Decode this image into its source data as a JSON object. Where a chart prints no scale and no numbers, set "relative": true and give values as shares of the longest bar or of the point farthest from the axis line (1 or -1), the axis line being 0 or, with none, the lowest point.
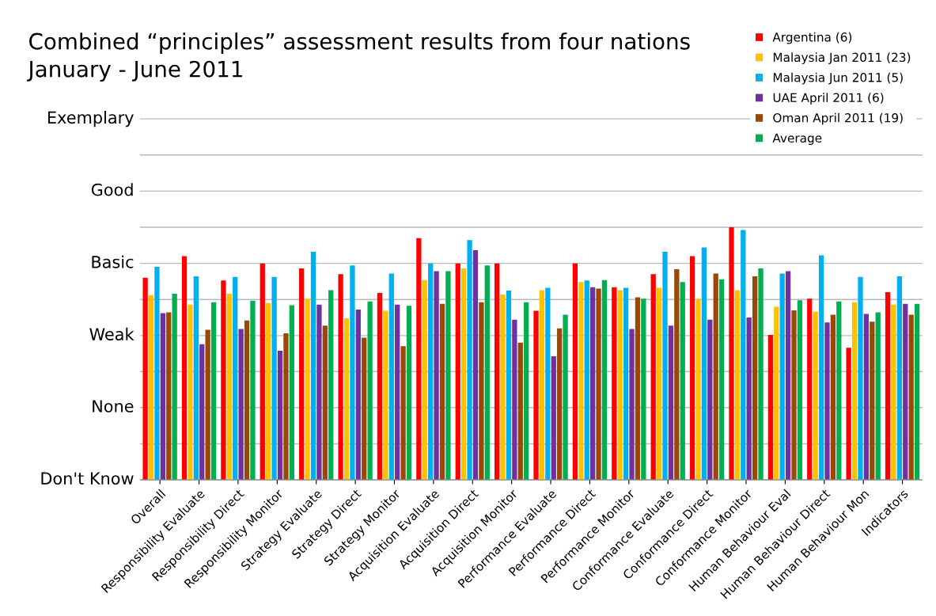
{
  "chart_data": {
    "type": "bar",
    "title": "Combined “principles” assessment results from four nations",
    "subtitle": "January - June 2011",
    "relative": true,
    "categories": [
      "Overall",
      "Responsibility Evaluate",
      "Responsibility Direct",
      "Responsibility Monitor",
      "Strategy Evaluate",
      "Strategy Direct",
      "Strategy Monitor",
      "Acquisition Evaluate",
      "Acquisition Direct",
      "Acquisition Monitor",
      "Performance Evaluate",
      "Performance Direct",
      "Performance Monitor",
      "Conformance Evaluate",
      "Conformance Direct",
      "Conformance Monitor",
      "Human Behaviour Eval",
      "Human Behaviour Direct",
      "Human Behaviour Mon",
      "Indicators"
    ],
    "series": [
      {
        "name": "Argentina (6)",
        "color": "#ff0000",
        "values": [
          0.8,
          0.886,
          0.789,
          0.857,
          0.837,
          0.814,
          0.74,
          0.957,
          0.857,
          0.857,
          0.669,
          0.857,
          0.763,
          0.814,
          0.886,
          1.0,
          0.574,
          0.717,
          0.523,
          0.743
        ]
      },
      {
        "name": "Malaysia Jan 2011 (23)",
        "color": "#ffc000",
        "values": [
          0.731,
          0.694,
          0.737,
          0.7,
          0.717,
          0.64,
          0.669,
          0.791,
          0.837,
          0.734,
          0.751,
          0.783,
          0.751,
          0.76,
          0.717,
          0.751,
          0.686,
          0.666,
          0.703,
          0.694
        ]
      },
      {
        "name": "Malaysia Jun 2011 (5)",
        "color": "#00b0f0",
        "values": [
          0.843,
          0.806,
          0.803,
          0.803,
          0.903,
          0.849,
          0.817,
          0.857,
          0.949,
          0.749,
          0.76,
          0.789,
          0.76,
          0.903,
          0.92,
          0.989,
          0.817,
          0.889,
          0.803,
          0.806
        ]
      },
      {
        "name": "UAE April 2011 (6)",
        "color": "#7030a0",
        "values": [
          0.66,
          0.537,
          0.597,
          0.511,
          0.694,
          0.674,
          0.694,
          0.826,
          0.909,
          0.634,
          0.489,
          0.763,
          0.597,
          0.611,
          0.634,
          0.643,
          0.826,
          0.623,
          0.657,
          0.697
        ]
      },
      {
        "name": "Oman April 2011 (19)",
        "color": "#984807",
        "values": [
          0.663,
          0.594,
          0.631,
          0.58,
          0.611,
          0.563,
          0.529,
          0.697,
          0.703,
          0.543,
          0.6,
          0.757,
          0.723,
          0.834,
          0.817,
          0.806,
          0.671,
          0.654,
          0.626,
          0.654
        ]
      },
      {
        "name": "Average",
        "color": "#00b050",
        "values": [
          0.737,
          0.703,
          0.709,
          0.691,
          0.751,
          0.706,
          0.689,
          0.826,
          0.849,
          0.703,
          0.654,
          0.791,
          0.717,
          0.783,
          0.794,
          0.837,
          0.711,
          0.706,
          0.663,
          0.697
        ]
      }
    ],
    "ref_lines": [
      {
        "axis": "y",
        "value": 0,
        "label": "Don't Know",
        "color": "#999999"
      },
      {
        "axis": "y",
        "value": 0.143,
        "label": null,
        "color": "#bbbbbb"
      },
      {
        "axis": "y",
        "value": 0.286,
        "label": "None",
        "color": "#bbbbbb"
      },
      {
        "axis": "y",
        "value": 0.429,
        "label": null,
        "color": "#bbbbbb"
      },
      {
        "axis": "y",
        "value": 0.571,
        "label": "Weak",
        "color": "#bbbbbb"
      },
      {
        "axis": "y",
        "value": 0.714,
        "label": null,
        "color": "#bbbbbb"
      },
      {
        "axis": "y",
        "value": 0.857,
        "label": "Basic",
        "color": "#bbbbbb"
      },
      {
        "axis": "y",
        "value": 1.0,
        "label": null,
        "color": "#bbbbbb"
      },
      {
        "axis": "y",
        "value": 1.143,
        "label": "Good",
        "color": "#bbbbbb"
      },
      {
        "axis": "y",
        "value": 1.286,
        "label": null,
        "color": "#bbbbbb"
      },
      {
        "axis": "y",
        "value": 1.429,
        "label": "Exemplary",
        "color": "#bbbbbb"
      }
    ],
    "legend": "top right"
  }
}
